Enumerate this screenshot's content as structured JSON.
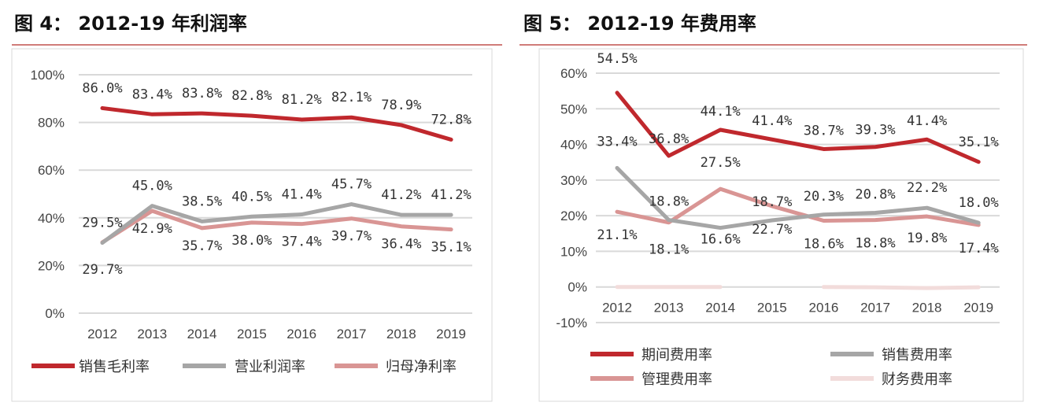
{
  "chart_data": [
    {
      "type": "line",
      "title": "图 4：   2012-19 年利润率",
      "categories": [
        "2012",
        "2013",
        "2014",
        "2015",
        "2016",
        "2017",
        "2018",
        "2019"
      ],
      "ylim": [
        0,
        100
      ],
      "yticks": [
        "0%",
        "20%",
        "40%",
        "60%",
        "80%",
        "100%"
      ],
      "grid": true,
      "legend": "bottom",
      "series": [
        {
          "name": "销售毛利率",
          "color": "#C0282D",
          "values": [
            86.0,
            83.4,
            83.8,
            82.8,
            81.2,
            82.1,
            78.9,
            72.8
          ],
          "labels": [
            "86.0%",
            "83.4%",
            "83.8%",
            "82.8%",
            "81.2%",
            "82.1%",
            "78.9%",
            "72.8%"
          ]
        },
        {
          "name": "营业利润率",
          "color": "#A6A6A6",
          "values": [
            29.5,
            45.0,
            38.5,
            40.5,
            41.4,
            45.7,
            41.2,
            41.2
          ],
          "labels": [
            "29.5%",
            "45.0%",
            "38.5%",
            "40.5%",
            "41.4%",
            "45.7%",
            "41.2%",
            "41.2%"
          ]
        },
        {
          "name": "归母净利率",
          "color": "#D99594",
          "values": [
            29.7,
            42.9,
            35.7,
            38.0,
            37.4,
            39.7,
            36.4,
            35.1
          ],
          "labels": [
            "29.7%",
            "42.9%",
            "35.7%",
            "38.0%",
            "37.4%",
            "39.7%",
            "36.4%",
            "35.1%"
          ]
        }
      ]
    },
    {
      "type": "line",
      "title": "图 5：  2012-19 年费用率",
      "categories": [
        "2012",
        "2013",
        "2014",
        "2015",
        "2016",
        "2017",
        "2018",
        "2019"
      ],
      "ylim": [
        -10,
        60
      ],
      "yticks": [
        "-10%",
        "0%",
        "10%",
        "20%",
        "30%",
        "40%",
        "50%",
        "60%"
      ],
      "grid": true,
      "legend": "bottom",
      "series": [
        {
          "name": "期间费用率",
          "color": "#C0282D",
          "values": [
            54.5,
            36.8,
            44.1,
            41.4,
            38.7,
            39.3,
            41.4,
            35.1
          ],
          "labels": [
            "54.5%",
            "36.8%",
            "44.1%",
            "41.4%",
            "38.7%",
            "39.3%",
            "41.4%",
            "35.1%"
          ]
        },
        {
          "name": "销售费用率",
          "color": "#A6A6A6",
          "values": [
            33.4,
            18.8,
            16.6,
            18.7,
            20.3,
            20.8,
            22.2,
            18.0
          ],
          "labels": [
            "33.4%",
            "18.8%",
            "16.6%",
            "18.7%",
            "20.3%",
            "20.8%",
            "22.2%",
            "18.0%"
          ]
        },
        {
          "name": "管理费用率",
          "color": "#D99594",
          "values": [
            21.1,
            18.1,
            27.5,
            22.7,
            18.6,
            18.8,
            19.8,
            17.4
          ],
          "labels": [
            "21.1%",
            "18.1%",
            "27.5%",
            "22.7%",
            "18.6%",
            "18.8%",
            "19.8%",
            "17.4%"
          ]
        },
        {
          "name": "财务费用率",
          "color": "#F2DCDB",
          "values": [
            0.0,
            0.0,
            0.0,
            null,
            0.0,
            -0.1,
            -0.3,
            -0.1
          ]
        }
      ]
    }
  ]
}
